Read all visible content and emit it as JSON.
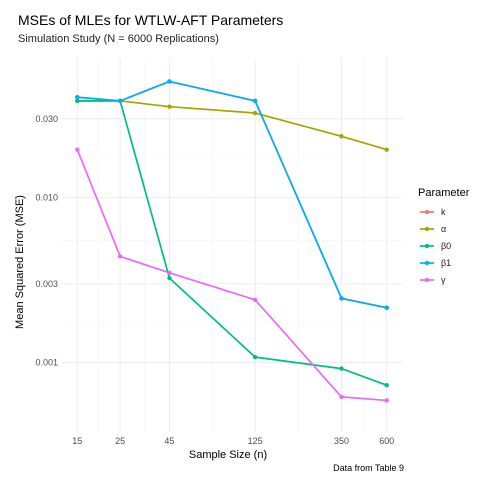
{
  "chart_data": {
    "type": "line",
    "title": "MSEs of MLEs for WTLW-AFT Parameters",
    "subtitle": "Simulation Study (N = 6000 Replications)",
    "xlabel": "Sample Size (n)",
    "ylabel": "Mean Squared Error (MSE)",
    "caption": "Data from Table 9",
    "x_scale": "log",
    "y_scale": "log",
    "x": [
      15,
      25,
      45,
      125,
      350,
      600
    ],
    "x_ticks": [
      "15",
      "25",
      "45",
      "125",
      "350",
      "600"
    ],
    "y_ticks": [
      {
        "value": 0.001,
        "label": "0.001"
      },
      {
        "value": 0.003,
        "label": "0.003"
      },
      {
        "value": 0.01,
        "label": "0.010"
      },
      {
        "value": 0.03,
        "label": "0.030"
      }
    ],
    "xlim": [
      12.5,
      720
    ],
    "ylim": [
      0.00038,
      0.07
    ],
    "grid": true,
    "legend": {
      "title": "Parameter",
      "position": "right"
    },
    "series": [
      {
        "name": "k",
        "color": "#F8766D",
        "values": [
          0.0405,
          0.0385,
          0.0505,
          0.0385,
          0.00245,
          0.00215
        ]
      },
      {
        "name": "α",
        "color": "#A3A500",
        "values": [
          0.0385,
          0.0385,
          0.0355,
          0.0325,
          0.0235,
          0.0195
        ]
      },
      {
        "name": "β0",
        "color": "#00BF7D",
        "values": [
          0.0385,
          0.0385,
          0.00325,
          0.00108,
          0.00092,
          0.00073
        ]
      },
      {
        "name": "β1",
        "color": "#00B0F6",
        "values": [
          0.0405,
          0.0385,
          0.0505,
          0.0385,
          0.00245,
          0.00215
        ]
      },
      {
        "name": "γ",
        "color": "#E76BF3",
        "values": [
          0.0195,
          0.0044,
          0.0035,
          0.0024,
          0.00062,
          0.00059
        ]
      }
    ]
  }
}
